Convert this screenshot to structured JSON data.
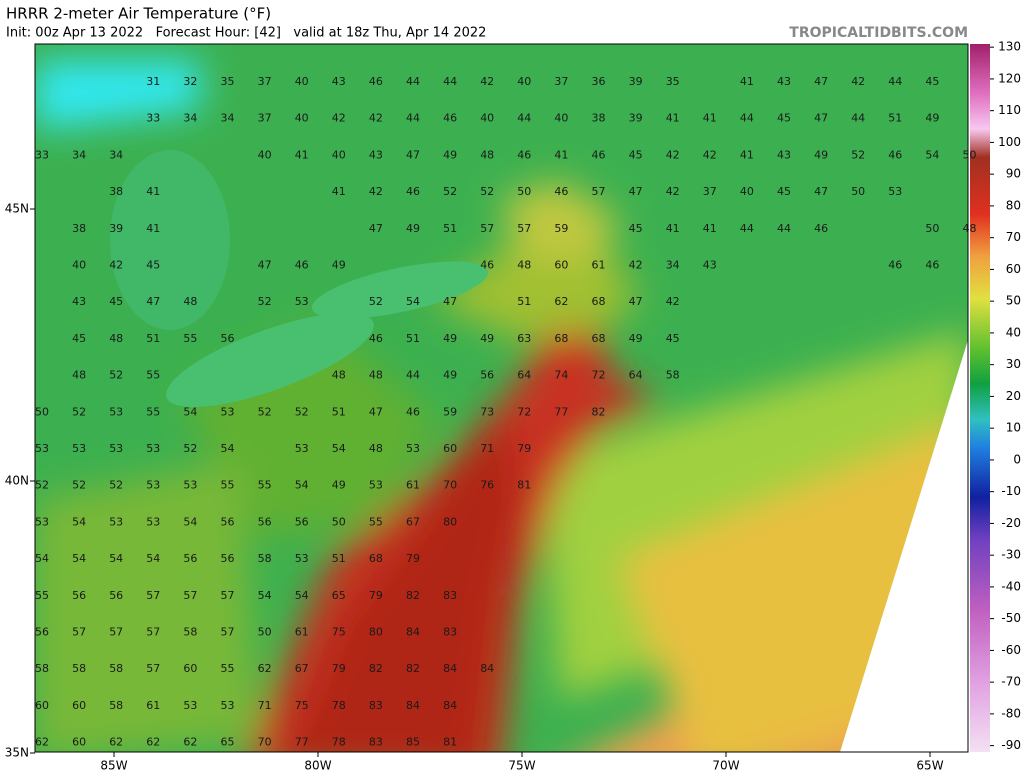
{
  "header": {
    "title": "HRRR 2-meter Air Temperature (°F)",
    "subtitle": "Init: 00z Apr 13 2022   Forecast Hour: [42]   valid at 18z Thu, Apr 14 2022",
    "source": "TROPICALTIDBITS.COM"
  },
  "map": {
    "lon_ticks": [
      {
        "value": -85,
        "label": "85W"
      },
      {
        "value": -80,
        "label": "80W"
      },
      {
        "value": -75,
        "label": "75W"
      },
      {
        "value": -70,
        "label": "70W"
      },
      {
        "value": -65,
        "label": "65W"
      }
    ],
    "lat_ticks": [
      {
        "value": 45,
        "label": "45N"
      },
      {
        "value": 40,
        "label": "40N"
      },
      {
        "value": 35,
        "label": "35N"
      }
    ],
    "station_values": [
      [
        null,
        null,
        null,
        31,
        32,
        35,
        37,
        40,
        43,
        46,
        44,
        44,
        42,
        40,
        37,
        36,
        39,
        35,
        null,
        41,
        43,
        47,
        42,
        44,
        45
      ],
      [
        null,
        null,
        null,
        33,
        34,
        34,
        37,
        40,
        42,
        42,
        44,
        46,
        40,
        44,
        40,
        38,
        39,
        41,
        41,
        44,
        45,
        47,
        44,
        51,
        49
      ],
      [
        33,
        34,
        34,
        null,
        null,
        null,
        40,
        41,
        40,
        43,
        47,
        49,
        48,
        46,
        41,
        46,
        45,
        42,
        42,
        41,
        43,
        49,
        52,
        46,
        54,
        50
      ],
      [
        null,
        null,
        38,
        41,
        null,
        null,
        null,
        null,
        41,
        42,
        46,
        52,
        52,
        50,
        46,
        57,
        47,
        42,
        37,
        40,
        45,
        47,
        50,
        53
      ],
      [
        null,
        38,
        39,
        41,
        null,
        null,
        null,
        null,
        null,
        47,
        49,
        51,
        57,
        57,
        59,
        null,
        45,
        41,
        41,
        44,
        44,
        46,
        null,
        null,
        50,
        48
      ],
      [
        null,
        40,
        42,
        45,
        null,
        null,
        47,
        46,
        49,
        null,
        null,
        null,
        46,
        48,
        60,
        61,
        42,
        34,
        43,
        null,
        null,
        null,
        null,
        46,
        46
      ],
      [
        null,
        43,
        45,
        47,
        48,
        null,
        52,
        53,
        null,
        52,
        54,
        47,
        null,
        51,
        62,
        68,
        47,
        42
      ],
      [
        null,
        45,
        48,
        51,
        55,
        56,
        null,
        null,
        null,
        46,
        51,
        49,
        49,
        63,
        68,
        68,
        49,
        45
      ],
      [
        null,
        48,
        52,
        55,
        null,
        null,
        null,
        null,
        48,
        48,
        44,
        49,
        56,
        64,
        74,
        72,
        64,
        58
      ],
      [
        50,
        52,
        53,
        55,
        54,
        53,
        52,
        52,
        51,
        47,
        46,
        59,
        73,
        72,
        77,
        82
      ],
      [
        53,
        53,
        53,
        53,
        52,
        54,
        null,
        53,
        54,
        48,
        53,
        60,
        71,
        79
      ],
      [
        52,
        52,
        52,
        53,
        53,
        55,
        55,
        54,
        49,
        53,
        61,
        70,
        76,
        81
      ],
      [
        53,
        54,
        53,
        53,
        54,
        56,
        56,
        56,
        50,
        55,
        67,
        80
      ],
      [
        54,
        54,
        54,
        54,
        56,
        56,
        58,
        53,
        51,
        68,
        79
      ],
      [
        55,
        56,
        56,
        57,
        57,
        57,
        54,
        54,
        65,
        79,
        82,
        83
      ],
      [
        56,
        57,
        57,
        57,
        58,
        57,
        50,
        61,
        75,
        80,
        84,
        83
      ],
      [
        58,
        58,
        58,
        57,
        60,
        55,
        62,
        67,
        79,
        82,
        82,
        84,
        84
      ],
      [
        60,
        60,
        58,
        61,
        53,
        53,
        71,
        75,
        78,
        83,
        84,
        84
      ],
      [
        62,
        60,
        62,
        62,
        62,
        65,
        70,
        77,
        78,
        83,
        85,
        81
      ]
    ]
  },
  "colorbar": {
    "lim": [
      -92,
      131
    ],
    "ticks": [
      130,
      120,
      110,
      100,
      90,
      80,
      70,
      60,
      50,
      40,
      30,
      20,
      10,
      0,
      -10,
      -20,
      -30,
      -40,
      -50,
      -60,
      -70,
      -80,
      -90
    ]
  }
}
